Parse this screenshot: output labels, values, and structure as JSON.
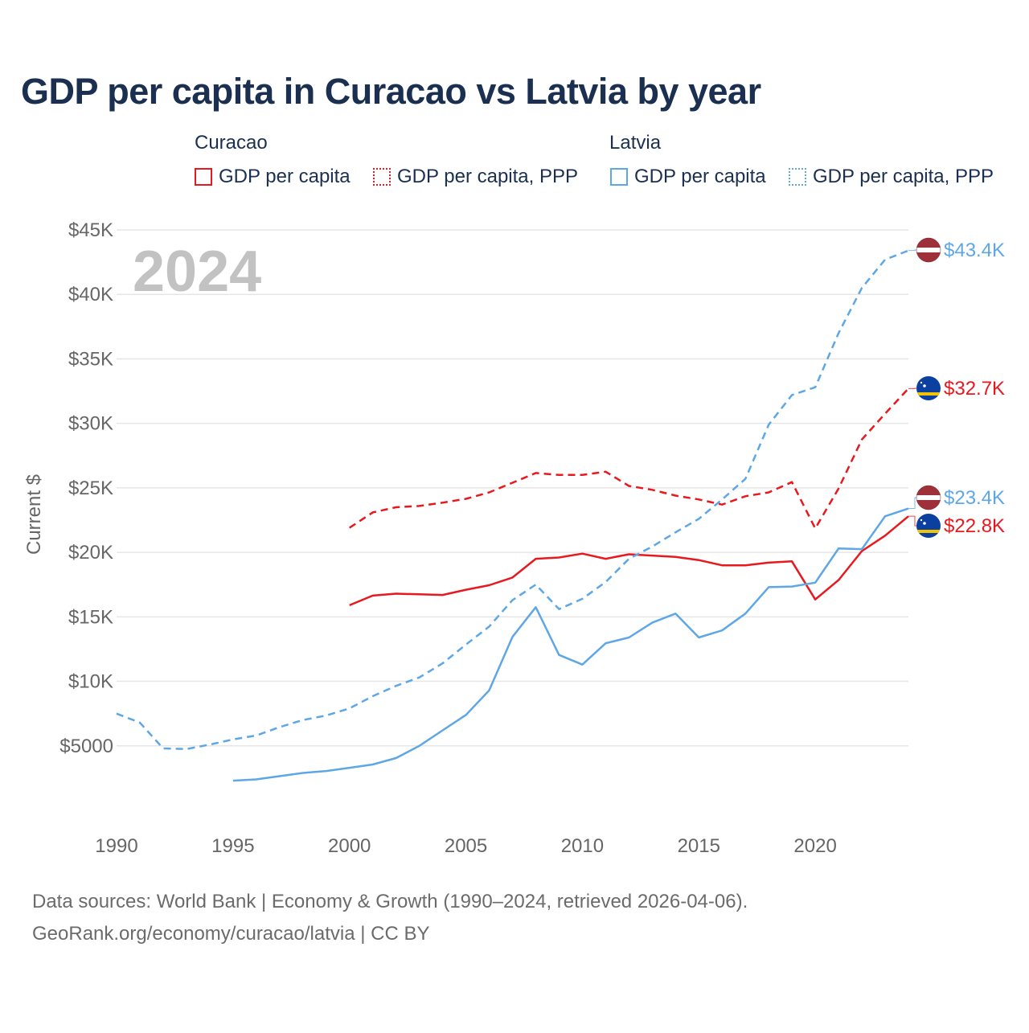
{
  "title": "GDP per capita in Curacao vs Latvia by year",
  "legend": {
    "groups": [
      {
        "country": "Curacao",
        "items": [
          {
            "label": "GDP per capita",
            "color": "#e8191e",
            "style": "solid"
          },
          {
            "label": "GDP per capita, PPP",
            "color": "#e8191e",
            "style": "dotted"
          }
        ]
      },
      {
        "country": "Latvia",
        "items": [
          {
            "label": "GDP per capita",
            "color": "#5ea7e6",
            "style": "solid"
          },
          {
            "label": "GDP per capita, PPP",
            "color": "#5ea7e6",
            "style": "dotted"
          }
        ]
      }
    ]
  },
  "year_watermark": "2024",
  "footer": {
    "line1": "Data sources: World Bank | Economy & Growth (1990–2024, retrieved 2026-04-06).",
    "line2": "GeoRank.org/economy/curacao/latvia | CC BY"
  },
  "chart_data": {
    "type": "line",
    "title": "GDP per capita in Curacao vs Latvia by year",
    "xlabel": "",
    "ylabel": "Current $",
    "xlim": [
      1990,
      2024
    ],
    "ylim": [
      0,
      45000
    ],
    "grid": true,
    "x_ticks": [
      1990,
      1995,
      2000,
      2005,
      2010,
      2015,
      2020
    ],
    "x_tick_labels": [
      "1990",
      "1995",
      "2000",
      "2005",
      "2010",
      "2015",
      "2020"
    ],
    "y_ticks": [
      5000,
      10000,
      15000,
      20000,
      25000,
      30000,
      35000,
      40000,
      45000
    ],
    "y_tick_labels": [
      "$5000",
      "$10K",
      "$15K",
      "$20K",
      "$25K",
      "$30K",
      "$35K",
      "$40K",
      "$45K"
    ],
    "series": [
      {
        "name": "Curacao GDP per capita",
        "country": "Curacao",
        "color": "#e8191e",
        "dashed": false,
        "end_label": "$22.8K",
        "points": [
          [
            2000,
            15900
          ],
          [
            2001,
            16650
          ],
          [
            2002,
            16800
          ],
          [
            2003,
            16750
          ],
          [
            2004,
            16700
          ],
          [
            2005,
            17100
          ],
          [
            2006,
            17450
          ],
          [
            2007,
            18050
          ],
          [
            2008,
            19500
          ],
          [
            2009,
            19600
          ],
          [
            2010,
            19900
          ],
          [
            2011,
            19500
          ],
          [
            2012,
            19850
          ],
          [
            2013,
            19750
          ],
          [
            2014,
            19650
          ],
          [
            2015,
            19400
          ],
          [
            2016,
            19000
          ],
          [
            2017,
            19000
          ],
          [
            2018,
            19200
          ],
          [
            2019,
            19300
          ],
          [
            2020,
            16350
          ],
          [
            2021,
            17850
          ],
          [
            2022,
            20100
          ],
          [
            2023,
            21300
          ],
          [
            2024,
            22800
          ]
        ]
      },
      {
        "name": "Curacao GDP per capita, PPP",
        "country": "Curacao",
        "color": "#e8191e",
        "dashed": true,
        "end_label": "$32.7K",
        "points": [
          [
            2000,
            21900
          ],
          [
            2001,
            23100
          ],
          [
            2002,
            23500
          ],
          [
            2003,
            23600
          ],
          [
            2004,
            23850
          ],
          [
            2005,
            24150
          ],
          [
            2006,
            24650
          ],
          [
            2007,
            25400
          ],
          [
            2008,
            26150
          ],
          [
            2009,
            26000
          ],
          [
            2010,
            26000
          ],
          [
            2011,
            26250
          ],
          [
            2012,
            25150
          ],
          [
            2013,
            24850
          ],
          [
            2014,
            24400
          ],
          [
            2015,
            24100
          ],
          [
            2016,
            23700
          ],
          [
            2017,
            24350
          ],
          [
            2018,
            24650
          ],
          [
            2019,
            25450
          ],
          [
            2020,
            21850
          ],
          [
            2021,
            24950
          ],
          [
            2022,
            28750
          ],
          [
            2023,
            30750
          ],
          [
            2024,
            32700
          ]
        ]
      },
      {
        "name": "Latvia GDP per capita",
        "country": "Latvia",
        "color": "#5ea7e6",
        "dashed": false,
        "end_label": "$23.4K",
        "points": [
          [
            1995,
            2300
          ],
          [
            1996,
            2400
          ],
          [
            1997,
            2650
          ],
          [
            1998,
            2900
          ],
          [
            1999,
            3050
          ],
          [
            2000,
            3300
          ],
          [
            2001,
            3550
          ],
          [
            2002,
            4050
          ],
          [
            2003,
            5000
          ],
          [
            2004,
            6200
          ],
          [
            2005,
            7400
          ],
          [
            2006,
            9300
          ],
          [
            2007,
            13450
          ],
          [
            2008,
            15750
          ],
          [
            2009,
            12050
          ],
          [
            2010,
            11300
          ],
          [
            2011,
            12950
          ],
          [
            2012,
            13400
          ],
          [
            2013,
            14550
          ],
          [
            2014,
            15250
          ],
          [
            2015,
            13400
          ],
          [
            2016,
            13950
          ],
          [
            2017,
            15250
          ],
          [
            2018,
            17300
          ],
          [
            2019,
            17350
          ],
          [
            2020,
            17650
          ],
          [
            2021,
            20300
          ],
          [
            2022,
            20250
          ],
          [
            2023,
            22800
          ],
          [
            2024,
            23400
          ]
        ]
      },
      {
        "name": "Latvia GDP per capita, PPP",
        "country": "Latvia",
        "color": "#5ea7e6",
        "dashed": true,
        "end_label": "$43.4K",
        "points": [
          [
            1990,
            7500
          ],
          [
            1991,
            6800
          ],
          [
            1992,
            4800
          ],
          [
            1993,
            4750
          ],
          [
            1994,
            5100
          ],
          [
            1995,
            5500
          ],
          [
            1996,
            5800
          ],
          [
            1997,
            6450
          ],
          [
            1998,
            7000
          ],
          [
            1999,
            7350
          ],
          [
            2000,
            7900
          ],
          [
            2001,
            8850
          ],
          [
            2002,
            9650
          ],
          [
            2003,
            10300
          ],
          [
            2004,
            11400
          ],
          [
            2005,
            12850
          ],
          [
            2006,
            14250
          ],
          [
            2007,
            16300
          ],
          [
            2008,
            17500
          ],
          [
            2009,
            15600
          ],
          [
            2010,
            16400
          ],
          [
            2011,
            17700
          ],
          [
            2012,
            19500
          ],
          [
            2013,
            20450
          ],
          [
            2014,
            21550
          ],
          [
            2015,
            22600
          ],
          [
            2016,
            24100
          ],
          [
            2017,
            25700
          ],
          [
            2018,
            29900
          ],
          [
            2019,
            32200
          ],
          [
            2020,
            32800
          ],
          [
            2021,
            37000
          ],
          [
            2022,
            40500
          ],
          [
            2023,
            42700
          ],
          [
            2024,
            43400
          ]
        ]
      }
    ]
  }
}
